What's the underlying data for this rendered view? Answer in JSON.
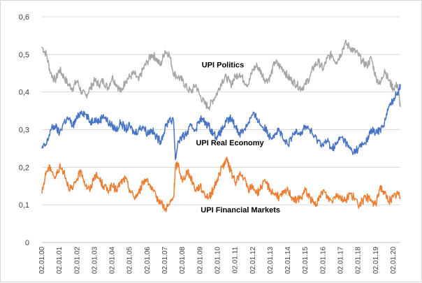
{
  "chart_data": {
    "type": "line",
    "title": "",
    "xlabel": "",
    "ylabel": "",
    "ylim": [
      0,
      0.6
    ],
    "y_ticks": [
      "0",
      "0,1",
      "0,2",
      "0,3",
      "0,4",
      "0,5",
      "0,6"
    ],
    "x_ticks": [
      "02.01.00",
      "02.01.01",
      "02.01.02",
      "02.01.03",
      "02.01.04",
      "02.01.05",
      "02.01.06",
      "02.01.07",
      "02.01.08",
      "02.01.09",
      "02.01.10",
      "02.01.11",
      "02.01.12",
      "02.01.13",
      "02.01.14",
      "02.01.15",
      "02.01.16",
      "02.01.17",
      "02.01.18",
      "02.01.19",
      "02.01.20"
    ],
    "grid": "horizontal",
    "series": [
      {
        "name": "UPI Politics",
        "color": "#a5a5a5",
        "x": [
          2000.0,
          2000.25,
          2000.5,
          2000.75,
          2001.0,
          2001.25,
          2001.5,
          2001.75,
          2002.0,
          2002.25,
          2002.5,
          2002.75,
          2003.0,
          2003.25,
          2003.5,
          2003.75,
          2004.0,
          2004.25,
          2004.5,
          2004.75,
          2005.0,
          2005.25,
          2005.5,
          2005.75,
          2006.0,
          2006.25,
          2006.5,
          2006.75,
          2007.0,
          2007.25,
          2007.5,
          2007.75,
          2008.0,
          2008.25,
          2008.5,
          2008.75,
          2009.0,
          2009.25,
          2009.5,
          2009.75,
          2010.0,
          2010.25,
          2010.5,
          2010.75,
          2011.0,
          2011.25,
          2011.5,
          2011.75,
          2012.0,
          2012.25,
          2012.5,
          2012.75,
          2013.0,
          2013.25,
          2013.5,
          2013.75,
          2014.0,
          2014.25,
          2014.5,
          2014.75,
          2015.0,
          2015.25,
          2015.5,
          2015.75,
          2016.0,
          2016.25,
          2016.5,
          2016.75,
          2017.0,
          2017.25,
          2017.5,
          2017.75,
          2018.0,
          2018.25,
          2018.5,
          2018.75,
          2019.0,
          2019.25,
          2019.5,
          2019.75,
          2020.0,
          2020.25,
          2020.4
        ],
        "values": [
          0.52,
          0.5,
          0.45,
          0.43,
          0.46,
          0.44,
          0.42,
          0.41,
          0.43,
          0.4,
          0.39,
          0.41,
          0.43,
          0.42,
          0.43,
          0.41,
          0.44,
          0.42,
          0.4,
          0.43,
          0.44,
          0.45,
          0.43,
          0.46,
          0.48,
          0.5,
          0.49,
          0.47,
          0.51,
          0.5,
          0.45,
          0.44,
          0.43,
          0.41,
          0.4,
          0.42,
          0.39,
          0.37,
          0.36,
          0.38,
          0.4,
          0.43,
          0.44,
          0.42,
          0.44,
          0.45,
          0.43,
          0.42,
          0.46,
          0.47,
          0.45,
          0.43,
          0.44,
          0.48,
          0.47,
          0.46,
          0.44,
          0.43,
          0.42,
          0.41,
          0.42,
          0.44,
          0.47,
          0.48,
          0.46,
          0.49,
          0.5,
          0.48,
          0.5,
          0.53,
          0.52,
          0.51,
          0.5,
          0.48,
          0.47,
          0.49,
          0.44,
          0.42,
          0.46,
          0.43,
          0.41,
          0.42,
          0.36
        ]
      },
      {
        "name": "UPI Real Economy",
        "color": "#4472c4",
        "x": [
          2000.0,
          2000.25,
          2000.5,
          2000.75,
          2001.0,
          2001.25,
          2001.5,
          2001.75,
          2002.0,
          2002.25,
          2002.5,
          2002.75,
          2003.0,
          2003.25,
          2003.5,
          2003.75,
          2004.0,
          2004.25,
          2004.5,
          2004.75,
          2005.0,
          2005.25,
          2005.5,
          2005.75,
          2006.0,
          2006.25,
          2006.5,
          2006.75,
          2007.0,
          2007.25,
          2007.5,
          2007.6,
          2007.75,
          2008.0,
          2008.25,
          2008.5,
          2008.75,
          2009.0,
          2009.25,
          2009.5,
          2009.75,
          2010.0,
          2010.25,
          2010.5,
          2010.75,
          2011.0,
          2011.25,
          2011.5,
          2011.75,
          2012.0,
          2012.25,
          2012.5,
          2012.75,
          2013.0,
          2013.25,
          2013.5,
          2013.75,
          2014.0,
          2014.25,
          2014.5,
          2014.75,
          2015.0,
          2015.25,
          2015.5,
          2015.75,
          2016.0,
          2016.25,
          2016.5,
          2016.75,
          2017.0,
          2017.25,
          2017.5,
          2017.75,
          2018.0,
          2018.25,
          2018.5,
          2018.75,
          2019.0,
          2019.25,
          2019.5,
          2019.75,
          2020.0,
          2020.25,
          2020.4
        ],
        "values": [
          0.25,
          0.26,
          0.3,
          0.31,
          0.29,
          0.32,
          0.33,
          0.31,
          0.33,
          0.35,
          0.34,
          0.32,
          0.33,
          0.32,
          0.34,
          0.32,
          0.31,
          0.3,
          0.32,
          0.3,
          0.31,
          0.29,
          0.3,
          0.31,
          0.29,
          0.3,
          0.28,
          0.27,
          0.3,
          0.33,
          0.32,
          0.22,
          0.27,
          0.28,
          0.29,
          0.31,
          0.3,
          0.33,
          0.32,
          0.31,
          0.29,
          0.28,
          0.3,
          0.32,
          0.33,
          0.31,
          0.29,
          0.3,
          0.32,
          0.34,
          0.33,
          0.31,
          0.3,
          0.28,
          0.29,
          0.3,
          0.27,
          0.26,
          0.28,
          0.3,
          0.29,
          0.31,
          0.3,
          0.28,
          0.27,
          0.26,
          0.27,
          0.25,
          0.26,
          0.28,
          0.27,
          0.25,
          0.24,
          0.25,
          0.26,
          0.27,
          0.3,
          0.29,
          0.3,
          0.32,
          0.36,
          0.38,
          0.4,
          0.42
        ]
      },
      {
        "name": "UPI Financial Markets",
        "color": "#ed7d31",
        "x": [
          2000.0,
          2000.25,
          2000.5,
          2000.75,
          2001.0,
          2001.25,
          2001.5,
          2001.75,
          2002.0,
          2002.25,
          2002.5,
          2002.75,
          2003.0,
          2003.25,
          2003.5,
          2003.75,
          2004.0,
          2004.25,
          2004.5,
          2004.75,
          2005.0,
          2005.25,
          2005.5,
          2005.75,
          2006.0,
          2006.25,
          2006.5,
          2006.75,
          2007.0,
          2007.25,
          2007.5,
          2007.6,
          2007.75,
          2008.0,
          2008.25,
          2008.5,
          2008.75,
          2009.0,
          2009.25,
          2009.5,
          2009.75,
          2010.0,
          2010.25,
          2010.5,
          2010.75,
          2011.0,
          2011.25,
          2011.5,
          2011.75,
          2012.0,
          2012.25,
          2012.5,
          2012.75,
          2013.0,
          2013.25,
          2013.5,
          2013.75,
          2014.0,
          2014.25,
          2014.5,
          2014.75,
          2015.0,
          2015.25,
          2015.5,
          2015.75,
          2016.0,
          2016.25,
          2016.5,
          2016.75,
          2017.0,
          2017.25,
          2017.5,
          2017.75,
          2018.0,
          2018.25,
          2018.5,
          2018.75,
          2019.0,
          2019.25,
          2019.5,
          2019.75,
          2020.0,
          2020.25,
          2020.4
        ],
        "values": [
          0.13,
          0.19,
          0.2,
          0.17,
          0.2,
          0.19,
          0.15,
          0.14,
          0.17,
          0.19,
          0.15,
          0.14,
          0.18,
          0.17,
          0.15,
          0.14,
          0.15,
          0.14,
          0.16,
          0.17,
          0.14,
          0.12,
          0.13,
          0.16,
          0.17,
          0.14,
          0.12,
          0.11,
          0.09,
          0.1,
          0.12,
          0.2,
          0.21,
          0.16,
          0.19,
          0.17,
          0.14,
          0.15,
          0.13,
          0.12,
          0.14,
          0.17,
          0.2,
          0.22,
          0.19,
          0.16,
          0.18,
          0.17,
          0.14,
          0.15,
          0.13,
          0.15,
          0.16,
          0.14,
          0.13,
          0.12,
          0.13,
          0.14,
          0.12,
          0.11,
          0.12,
          0.14,
          0.12,
          0.1,
          0.11,
          0.14,
          0.12,
          0.11,
          0.13,
          0.12,
          0.11,
          0.13,
          0.12,
          0.1,
          0.11,
          0.12,
          0.11,
          0.1,
          0.15,
          0.13,
          0.11,
          0.12,
          0.13,
          0.12
        ]
      }
    ],
    "annotations": [
      {
        "text": "UPI Politics",
        "series": 0,
        "at_x": 2010.3,
        "at_y": 0.465
      },
      {
        "text": "UPI Real Economy",
        "series": 1,
        "at_x": 2010.7,
        "at_y": 0.258
      },
      {
        "text": "UPI Financial Markets",
        "series": 2,
        "at_x": 2011.3,
        "at_y": 0.08
      }
    ]
  }
}
